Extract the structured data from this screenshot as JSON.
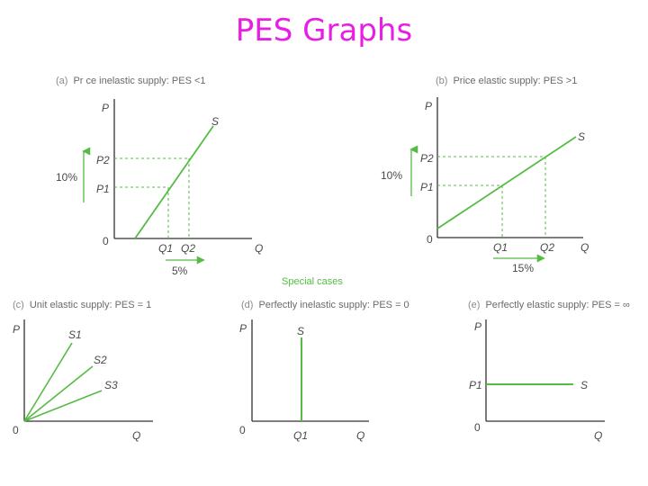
{
  "title": "PES Graphs",
  "special_cases": "Special cases",
  "colors": {
    "title": "#e81ee2",
    "curve": "#55bb44",
    "guide": "#55bb44",
    "axis": "#333333"
  },
  "panels": {
    "a": {
      "tag": "(a)",
      "caption": "Pr ce inelastic supply: PES <1",
      "p_axis": "P",
      "q_axis": "Q",
      "origin": "0",
      "p2": "P2",
      "p1": "P1",
      "q1": "Q1",
      "q2": "Q2",
      "curve": "S",
      "p_change": "10%",
      "q_change": "5%"
    },
    "b": {
      "tag": "(b)",
      "caption": "Price elastic supply: PES >1",
      "p_axis": "P",
      "q_axis": "Q",
      "origin": "0",
      "p2": "P2",
      "p1": "P1",
      "q1": "Q1",
      "q2": "Q2",
      "curve": "S",
      "p_change": "10%",
      "q_change": "15%"
    },
    "c": {
      "tag": "(c)",
      "caption": "Unit elastic supply: PES = 1",
      "p_axis": "P",
      "q_axis": "Q",
      "origin": "0",
      "s1": "S1",
      "s2": "S2",
      "s3": "S3"
    },
    "d": {
      "tag": "(d)",
      "caption": "Perfectly inelastic supply: PES = 0",
      "p_axis": "P",
      "q_axis": "Q",
      "origin": "0",
      "curve": "S",
      "q1": "Q1"
    },
    "e": {
      "tag": "(e)",
      "caption": "Perfectly elastic supply: PES = ∞",
      "p_axis": "P",
      "q_axis": "Q",
      "origin": "0",
      "curve": "S",
      "p1": "P1"
    }
  }
}
